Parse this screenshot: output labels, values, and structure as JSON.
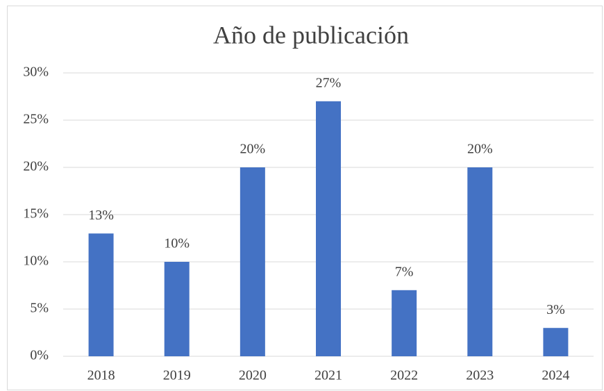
{
  "chart_data": {
    "type": "bar",
    "title": "Año de publicación",
    "categories": [
      "2018",
      "2019",
      "2020",
      "2021",
      "2022",
      "2023",
      "2024"
    ],
    "values": [
      13,
      10,
      20,
      27,
      7,
      20,
      3
    ],
    "value_labels": [
      "13%",
      "10%",
      "20%",
      "27%",
      "7%",
      "20%",
      "3%"
    ],
    "color": "#4472c4",
    "ylim": [
      0,
      30
    ],
    "yticks": [
      {
        "value": 0,
        "label": "0%"
      },
      {
        "value": 5,
        "label": "5%"
      },
      {
        "value": 10,
        "label": "10%"
      },
      {
        "value": 15,
        "label": "15%"
      },
      {
        "value": 20,
        "label": "20%"
      },
      {
        "value": 25,
        "label": "25%"
      },
      {
        "value": 30,
        "label": "30%"
      }
    ],
    "grid": true
  }
}
